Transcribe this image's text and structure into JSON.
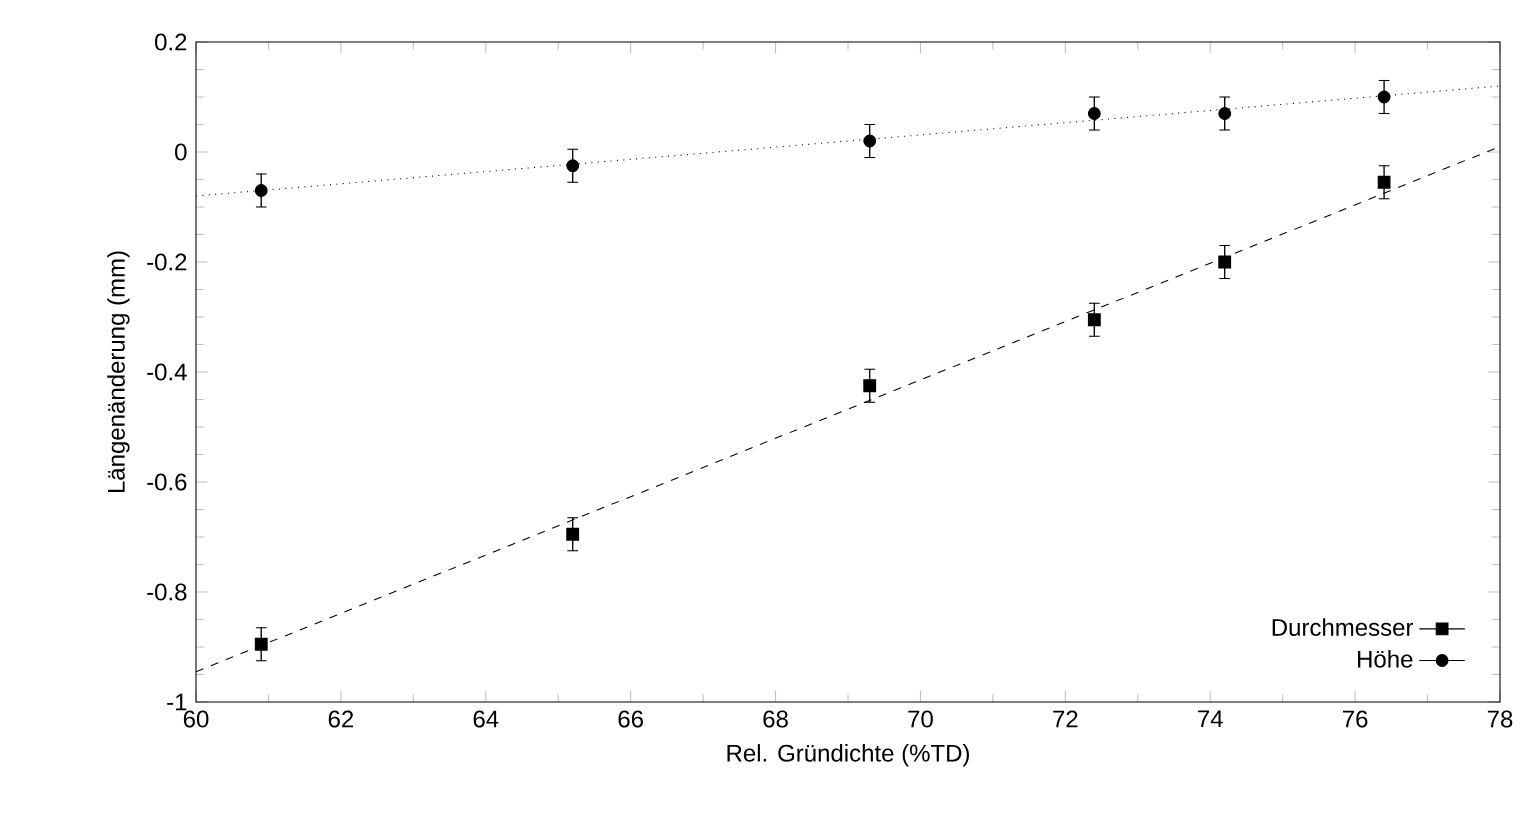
{
  "chart_data": {
    "type": "scatter",
    "xlabel": "Rel. Gründichte (%TD)",
    "ylabel": "Längenänderung (mm)",
    "xlim": [
      60,
      78
    ],
    "xticks": [
      60,
      62,
      64,
      66,
      68,
      70,
      72,
      74,
      76,
      78
    ],
    "ylim": [
      -1,
      0.2
    ],
    "yticks": [
      -1,
      -0.8,
      -0.6,
      -0.4,
      -0.2,
      0,
      0.2
    ],
    "grid": false,
    "legend": "bottom right",
    "series": [
      {
        "name": "Durchmesser",
        "type": "scatter",
        "marker": "square",
        "color": "#000000",
        "x": [
          60.9,
          65.2,
          69.3,
          72.4,
          74.2,
          76.4
        ],
        "values": [
          -0.895,
          -0.695,
          -0.425,
          -0.305,
          -0.2,
          -0.055
        ],
        "errors": [
          0.03,
          0.03,
          0.03,
          0.03,
          0.03,
          0.03
        ]
      },
      {
        "name": "Höhe",
        "type": "scatter",
        "marker": "circle",
        "color": "#000000",
        "x": [
          60.9,
          65.2,
          69.3,
          72.4,
          74.2,
          76.4
        ],
        "values": [
          -0.07,
          -0.025,
          0.02,
          0.07,
          0.07,
          0.1
        ],
        "errors": [
          0.03,
          0.03,
          0.03,
          0.03,
          0.03,
          0.03
        ]
      },
      {
        "type": "line",
        "line_style": "dashed",
        "marker": "none",
        "color": "#000000",
        "x": [
          60,
          78
        ],
        "values": [
          -0.945,
          0.01
        ]
      },
      {
        "type": "line",
        "line_style": "dotted",
        "marker": "none",
        "color": "#000000",
        "x": [
          60,
          78
        ],
        "values": [
          -0.08,
          0.12
        ]
      }
    ]
  }
}
